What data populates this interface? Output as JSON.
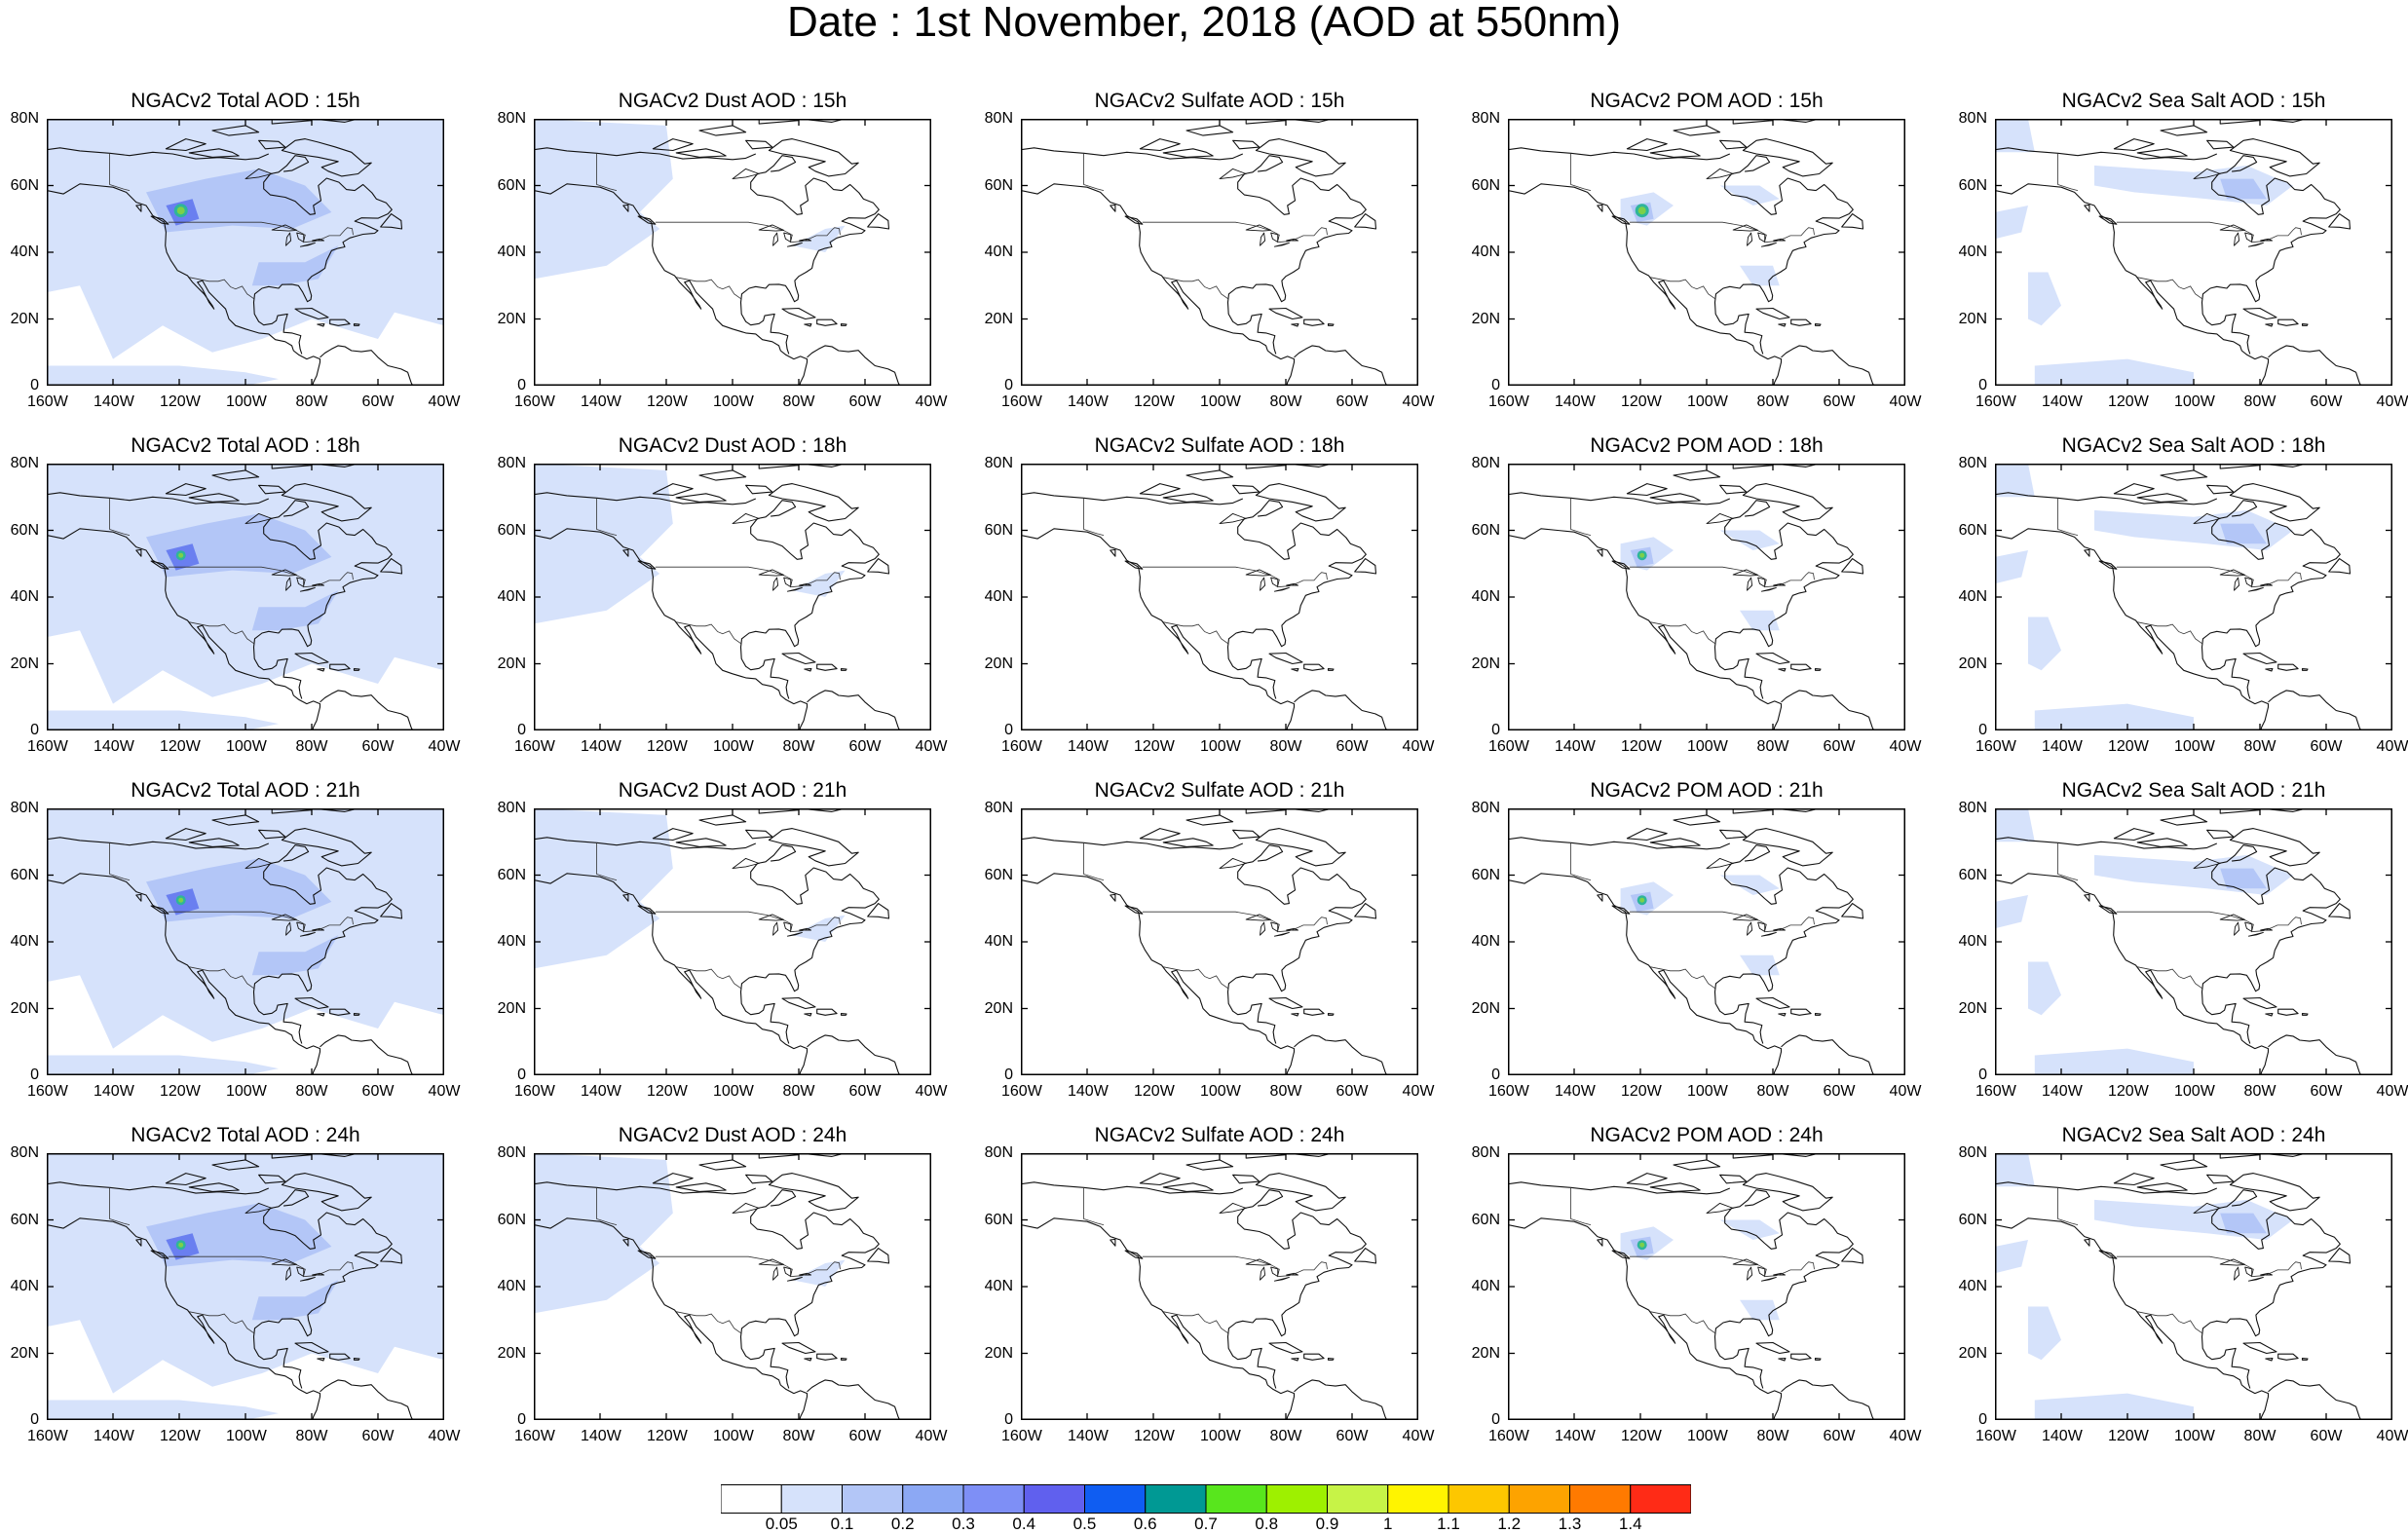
{
  "title": "Date : 1st November, 2018 (AOD at 550nm)",
  "panels": [
    [
      "NGACv2 Total AOD : 15h",
      "NGACv2 Dust AOD : 15h",
      "NGACv2 Sulfate AOD : 15h",
      "NGACv2 POM AOD : 15h",
      "NGACv2 Sea Salt AOD : 15h"
    ],
    [
      "NGACv2 Total AOD : 18h",
      "NGACv2 Dust AOD : 18h",
      "NGACv2 Sulfate AOD : 18h",
      "NGACv2 POM AOD : 18h",
      "NGACv2 Sea Salt AOD : 18h"
    ],
    [
      "NGACv2 Total AOD : 21h",
      "NGACv2 Dust AOD : 21h",
      "NGACv2 Sulfate AOD : 21h",
      "NGACv2 POM AOD : 21h",
      "NGACv2 Sea Salt AOD : 21h"
    ],
    [
      "NGACv2 Total AOD : 24h",
      "NGACv2 Dust AOD : 24h",
      "NGACv2 Sulfate AOD : 24h",
      "NGACv2 POM AOD : 24h",
      "NGACv2 Sea Salt  AOD : 24h"
    ]
  ],
  "map": {
    "lon_ticks": [
      "160W",
      "140W",
      "120W",
      "100W",
      "80W",
      "60W",
      "40W"
    ],
    "lat_ticks": [
      "80N",
      "60N",
      "40N",
      "20N",
      "0"
    ],
    "lon_range": [
      -160,
      -40
    ],
    "lat_range": [
      0,
      80
    ],
    "overlay_colors": {
      "low": "#d6e2fb",
      "mid": "#b3c6f7",
      "source": "#6a7ff0",
      "hotspot_center": "#7cd04a",
      "hotspot_ring": "#2fb59a"
    }
  },
  "colorbar": {
    "colors": [
      "#ffffff",
      "#d6e2fb",
      "#b3c6f7",
      "#8ca8f4",
      "#7e8ff6",
      "#6060ee",
      "#0f5df2",
      "#009994",
      "#58e61d",
      "#9ef000",
      "#c7f347",
      "#fff400",
      "#fdc700",
      "#fda300",
      "#ff7a00",
      "#ff2b16"
    ],
    "labels": [
      "0.05",
      "0.1",
      "0.2",
      "0.3",
      "0.4",
      "0.5",
      "0.6",
      "0.7",
      "0.8",
      "0.9",
      "1",
      "1.1",
      "1.2",
      "1.3",
      "1.4"
    ]
  }
}
